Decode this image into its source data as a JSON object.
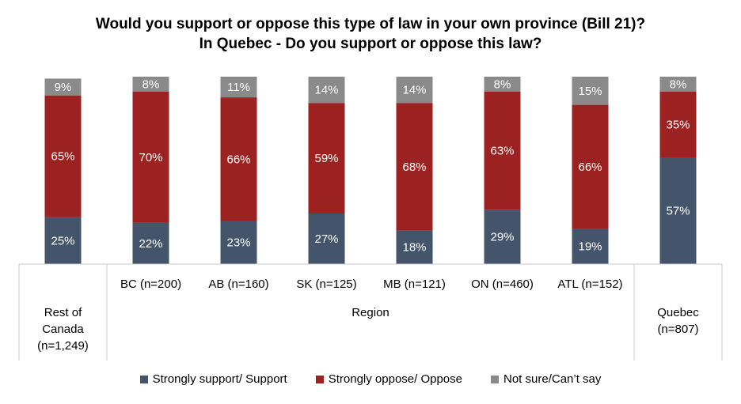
{
  "chart_data": {
    "type": "bar",
    "stacked": true,
    "title_line1": "Would you support or oppose this type of law in your own province (Bill 21)?",
    "title_line2": "In Quebec - Do you support or oppose this law?",
    "categories": [
      "Rest of Canada (n=1,249)",
      "BC (n=200)",
      "AB (n=160)",
      "SK (n=125)",
      "MB (n=121)",
      "ON (n=460)",
      "ATL (n=152)",
      "Quebec (n=807)"
    ],
    "category_lines": [
      [
        "Rest of",
        "Canada",
        "(n=1,249)"
      ],
      [
        "BC (n=200)"
      ],
      [
        "AB (n=160)"
      ],
      [
        "SK (n=125)"
      ],
      [
        "MB (n=121)"
      ],
      [
        "ON (n=460)"
      ],
      [
        "ATL (n=152)"
      ],
      [
        "Quebec",
        "(n=807)"
      ]
    ],
    "group_label": "Region",
    "series": [
      {
        "name": "Strongly support/ Support",
        "color": "#44546A",
        "values": [
          25,
          22,
          23,
          27,
          18,
          29,
          19,
          57
        ]
      },
      {
        "name": "Strongly oppose/ Oppose",
        "color": "#9B2220",
        "values": [
          65,
          70,
          66,
          59,
          68,
          63,
          66,
          35
        ]
      },
      {
        "name": "Not sure/Can’t say",
        "color": "#8A8A8A",
        "values": [
          9,
          8,
          11,
          14,
          14,
          8,
          15,
          8
        ]
      }
    ],
    "value_suffix": "%",
    "ylim": [
      0,
      100
    ],
    "grid": false,
    "legend_position": "bottom"
  }
}
